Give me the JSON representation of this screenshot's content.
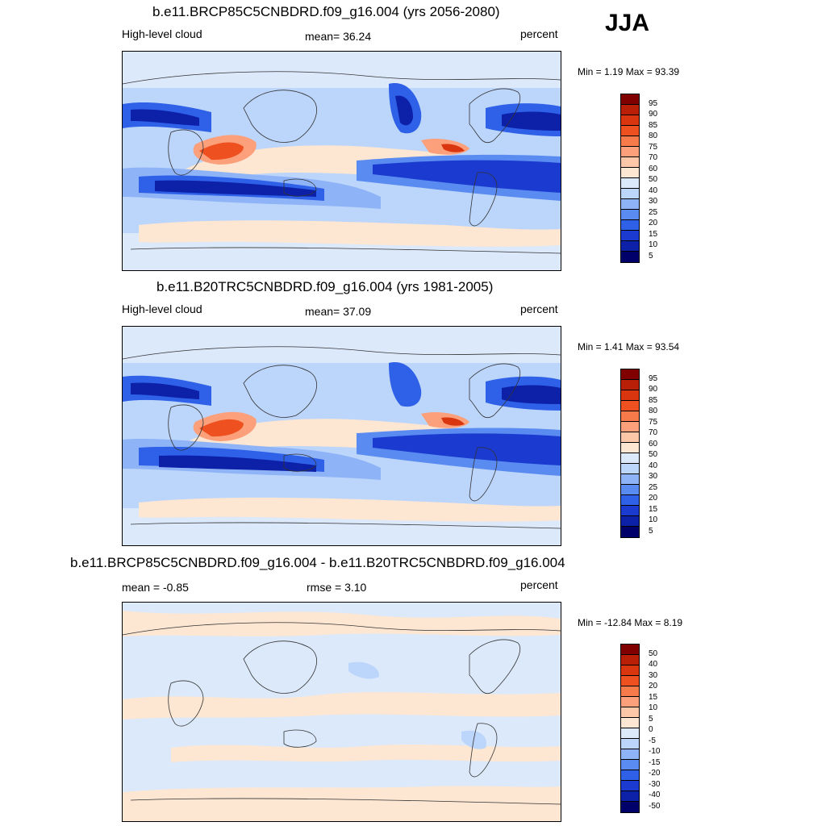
{
  "season": "JJA",
  "panels": [
    {
      "title": "b.e11.BRCP85C5CNBDRD.f09_g16.004 (yrs 2056-2080)",
      "left_label": "High-level cloud",
      "center_label": "mean=  36.24",
      "right_label": "percent",
      "minmax": "Min =   1.19 Max =  93.39",
      "colorbar": {
        "labels": [
          "95",
          "90",
          "85",
          "80",
          "75",
          "70",
          "60",
          "50",
          "40",
          "30",
          "25",
          "20",
          "15",
          "10",
          "5"
        ],
        "colors": [
          "#800000",
          "#b91e07",
          "#d9350f",
          "#ef5020",
          "#f77b4a",
          "#fba07b",
          "#fcc7a8",
          "#fde6d2",
          "#dbe9fb",
          "#bcd5fa",
          "#8fb3f7",
          "#5a8bf0",
          "#2e60e8",
          "#1a3ad0",
          "#0c20a8",
          "#00006b"
        ]
      }
    },
    {
      "title": "b.e11.B20TRC5CNBDRD.f09_g16.004 (yrs 1981-2005)",
      "left_label": "High-level cloud",
      "center_label": "mean=  37.09",
      "right_label": "percent",
      "minmax": "Min =   1.41 Max =  93.54",
      "colorbar": {
        "labels": [
          "95",
          "90",
          "85",
          "80",
          "75",
          "70",
          "60",
          "50",
          "40",
          "30",
          "25",
          "20",
          "15",
          "10",
          "5"
        ],
        "colors": [
          "#800000",
          "#b91e07",
          "#d9350f",
          "#ef5020",
          "#f77b4a",
          "#fba07b",
          "#fcc7a8",
          "#fde6d2",
          "#dbe9fb",
          "#bcd5fa",
          "#8fb3f7",
          "#5a8bf0",
          "#2e60e8",
          "#1a3ad0",
          "#0c20a8",
          "#00006b"
        ]
      }
    },
    {
      "title": "b.e11.BRCP85C5CNBDRD.f09_g16.004 - b.e11.B20TRC5CNBDRD.f09_g16.004",
      "left_label": "mean =  -0.85",
      "center_label": "rmse =   3.10",
      "right_label": "percent",
      "minmax": "Min = -12.84 Max =   8.19",
      "colorbar": {
        "labels": [
          "50",
          "40",
          "30",
          "20",
          "15",
          "10",
          "5",
          "0",
          "-5",
          "-10",
          "-15",
          "-20",
          "-30",
          "-40",
          "-50"
        ],
        "colors": [
          "#800000",
          "#b91e07",
          "#d9350f",
          "#ef5020",
          "#f77b4a",
          "#fba07b",
          "#fcc7a8",
          "#fde6d2",
          "#dbe9fb",
          "#bcd5fa",
          "#8fb3f7",
          "#5a8bf0",
          "#2e60e8",
          "#1a3ad0",
          "#0c20a8",
          "#00006b"
        ]
      }
    }
  ]
}
